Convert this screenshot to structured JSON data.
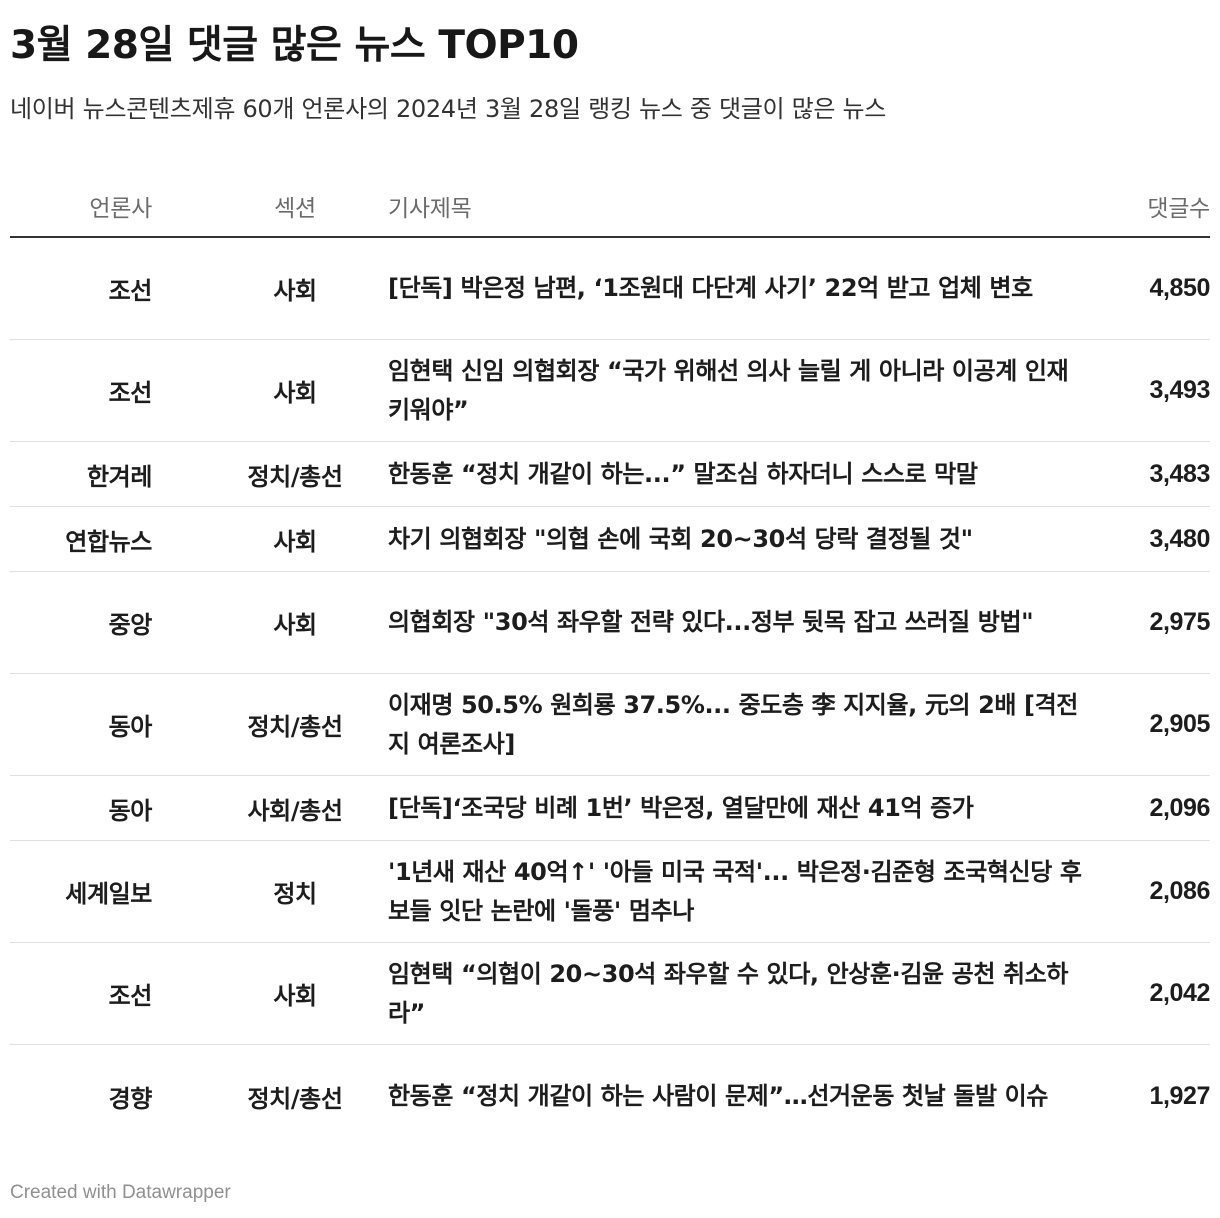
{
  "title": "3월 28일 댓글 많은 뉴스 TOP10",
  "subtitle": "네이버 뉴스콘텐츠제휴 60개 언론사의 2024년 3월 28일 랭킹 뉴스 중 댓글이 많은 뉴스",
  "chart_data": {
    "type": "table",
    "columns": [
      "언론사",
      "섹션",
      "기사제목",
      "댓글수"
    ],
    "rows": [
      {
        "outlet": "조선",
        "section": "사회",
        "headline": "[단독] 박은정 남편, ‘1조원대 다단계 사기’ 22억 받고 업체 변호",
        "comments": "4,850"
      },
      {
        "outlet": "조선",
        "section": "사회",
        "headline": "임현택 신임 의협회장 “국가 위해선 의사 늘릴 게 아니라 이공계 인재 키워야”",
        "comments": "3,493"
      },
      {
        "outlet": "한겨레",
        "section": "정치/총선",
        "headline": "한동훈 “정치 개같이 하는...” 말조심 하자더니 스스로 막말",
        "comments": "3,483"
      },
      {
        "outlet": "연합뉴스",
        "section": "사회",
        "headline": "차기 의협회장 \"의협 손에 국회 20~30석 당락 결정될 것\"",
        "comments": "3,480"
      },
      {
        "outlet": "중앙",
        "section": "사회",
        "headline": "의협회장 \"30석 좌우할 전략 있다...정부 뒷목 잡고 쓰러질 방법\"",
        "comments": "2,975"
      },
      {
        "outlet": "동아",
        "section": "정치/총선",
        "headline": "이재명 50.5% 원희룡 37.5%... 중도층 李 지지율, 元의 2배 [격전지 여론조사]",
        "comments": "2,905"
      },
      {
        "outlet": "동아",
        "section": "사회/총선",
        "headline": "[단독]‘조국당 비례 1번’ 박은정, 열달만에 재산 41억 증가",
        "comments": "2,096"
      },
      {
        "outlet": "세계일보",
        "section": "정치",
        "headline": "'1년새 재산 40억↑' '아들 미국 국적'... 박은정·김준형 조국혁신당 후보들 잇단 논란에 '돌풍' 멈추나",
        "comments": "2,086"
      },
      {
        "outlet": "조선",
        "section": "사회",
        "headline": "임현택 “의협이 20~30석 좌우할 수 있다, 안상훈·김윤 공천 취소하라”",
        "comments": "2,042"
      },
      {
        "outlet": "경향",
        "section": "정치/총선",
        "headline": "한동훈 “정치 개같이 하는 사람이 문제”…선거운동 첫날 돌발 이슈",
        "comments": "1,927"
      }
    ]
  },
  "credit": "Created with Datawrapper"
}
